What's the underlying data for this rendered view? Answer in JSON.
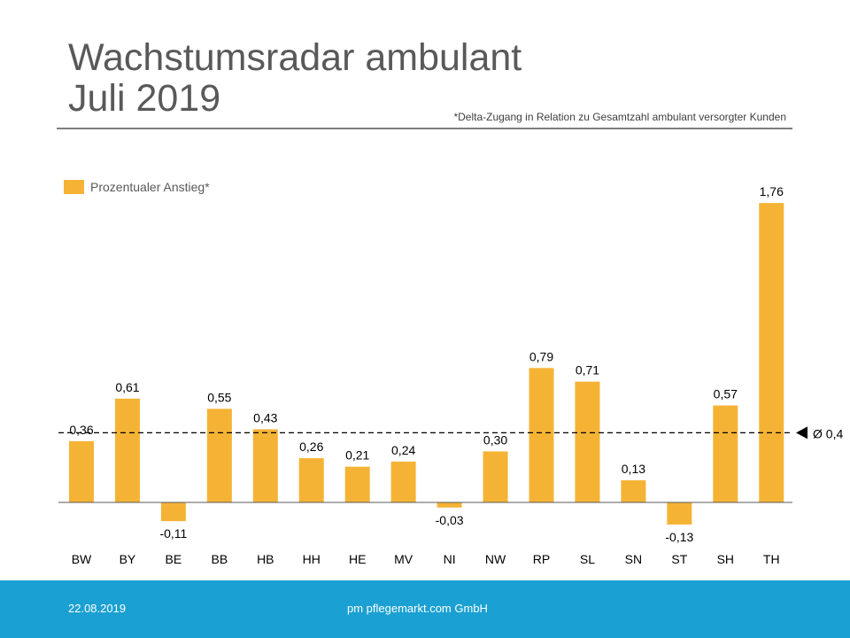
{
  "header": {
    "title_line1": "Wachstumsradar ambulant",
    "title_line2": "Juli 2019",
    "footnote": "*Delta-Zugang  in Relation zu Gesamtzahl ambulant versorgter  Kunden"
  },
  "footer": {
    "date": "22.08.2019",
    "company": "pm pflegemarkt.com GmbH",
    "color": "#1aa0d2"
  },
  "chart_data": {
    "type": "bar",
    "title": "",
    "xlabel": "",
    "ylabel": "",
    "legend": {
      "label": "Prozentualer Anstieg*",
      "placement": "top-left"
    },
    "categories": [
      "BW",
      "BY",
      "BE",
      "BB",
      "HB",
      "HH",
      "HE",
      "MV",
      "NI",
      "NW",
      "RP",
      "SL",
      "SN",
      "ST",
      "SH",
      "TH"
    ],
    "series": [
      {
        "name": "Prozentualer Anstieg*",
        "color": "#f5b335",
        "values": [
          0.36,
          0.61,
          -0.11,
          0.55,
          0.43,
          0.26,
          0.21,
          0.24,
          -0.03,
          0.3,
          0.79,
          0.71,
          0.13,
          -0.13,
          0.57,
          1.76
        ]
      }
    ],
    "value_labels": [
      "0,36",
      "0,61",
      "-0,11",
      "0,55",
      "0,43",
      "0,26",
      "0,21",
      "0,24",
      "-0,03",
      "0,30",
      "0,79",
      "0,71",
      "0,13",
      "-0,13",
      "0,57",
      "1,76"
    ],
    "average": {
      "value": 0.42,
      "label": "Ø 0,4",
      "style": "dashed"
    },
    "ylim": [
      -0.15,
      1.8
    ],
    "grid": false
  }
}
